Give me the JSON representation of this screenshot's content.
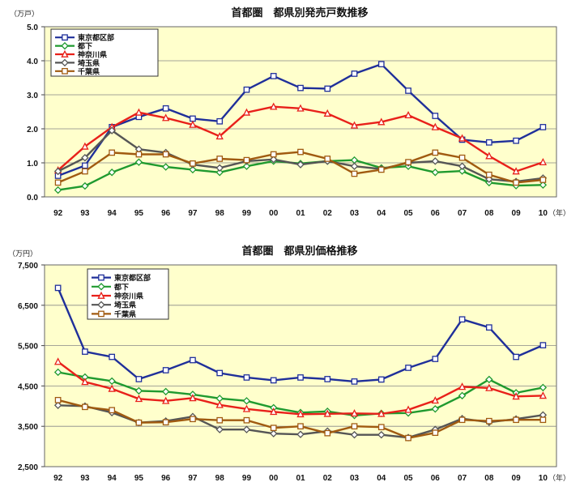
{
  "chart_data": [
    {
      "type": "line",
      "title": "首都圏　都県別発売戸数推移",
      "y_unit": "（万戸）",
      "x_unit": "（年）",
      "categories": [
        "92",
        "93",
        "94",
        "95",
        "96",
        "97",
        "98",
        "99",
        "00",
        "01",
        "02",
        "03",
        "04",
        "05",
        "06",
        "07",
        "08",
        "09",
        "10"
      ],
      "ylim": [
        0,
        5
      ],
      "yticks": [
        "0.0",
        "1.0",
        "2.0",
        "3.0",
        "4.0",
        "5.0"
      ],
      "grid": true,
      "legend_position": "top-left",
      "series": [
        {
          "name": "東京都区部",
          "color": "#1f2f9a",
          "marker": "square",
          "values": [
            0.62,
            0.92,
            2.05,
            2.35,
            2.6,
            2.3,
            2.22,
            3.15,
            3.55,
            3.2,
            3.18,
            3.62,
            3.9,
            3.12,
            2.38,
            1.68,
            1.6,
            1.65,
            2.05
          ]
        },
        {
          "name": "都下",
          "color": "#1f9a2f",
          "marker": "diamond",
          "values": [
            0.2,
            0.32,
            0.72,
            1.02,
            0.88,
            0.8,
            0.72,
            0.9,
            1.05,
            0.98,
            1.05,
            1.08,
            0.85,
            0.9,
            0.72,
            0.76,
            0.42,
            0.33,
            0.35
          ]
        },
        {
          "name": "神奈川県",
          "color": "#e8201a",
          "marker": "triangle",
          "values": [
            0.78,
            1.48,
            2.05,
            2.48,
            2.32,
            2.12,
            1.78,
            2.48,
            2.65,
            2.6,
            2.45,
            2.1,
            2.2,
            2.4,
            2.05,
            1.72,
            1.2,
            0.75,
            1.02
          ]
        },
        {
          "name": "埼玉県",
          "color": "#555555",
          "marker": "diamond",
          "values": [
            0.75,
            1.15,
            1.95,
            1.4,
            1.3,
            0.95,
            0.85,
            1.05,
            1.1,
            0.95,
            1.05,
            0.9,
            0.82,
            1.0,
            1.05,
            0.9,
            0.52,
            0.45,
            0.55
          ]
        },
        {
          "name": "千葉県",
          "color": "#a05a10",
          "marker": "square",
          "values": [
            0.42,
            0.75,
            1.3,
            1.25,
            1.25,
            0.98,
            1.12,
            1.08,
            1.25,
            1.32,
            1.12,
            0.68,
            0.8,
            1.02,
            1.3,
            1.15,
            0.65,
            0.42,
            0.5
          ]
        }
      ]
    },
    {
      "type": "line",
      "title": "首都圏　都県別価格推移",
      "y_unit": "（万円）",
      "x_unit": "（年）",
      "categories": [
        "92",
        "93",
        "94",
        "95",
        "96",
        "97",
        "98",
        "99",
        "00",
        "01",
        "02",
        "03",
        "04",
        "05",
        "06",
        "07",
        "08",
        "09",
        "10"
      ],
      "ylim": [
        2500,
        7500
      ],
      "yticks": [
        "2,500",
        "3,500",
        "4,500",
        "5,500",
        "6,500",
        "7,500"
      ],
      "grid": true,
      "legend_position": "top-left",
      "series": [
        {
          "name": "東京都区部",
          "color": "#1f2f9a",
          "marker": "square",
          "values": [
            6930,
            5350,
            5220,
            4670,
            4890,
            5140,
            4820,
            4710,
            4640,
            4710,
            4670,
            4610,
            4660,
            4950,
            5170,
            6150,
            5950,
            5220,
            5510
          ]
        },
        {
          "name": "都下",
          "color": "#1f9a2f",
          "marker": "diamond",
          "values": [
            4840,
            4720,
            4620,
            4380,
            4360,
            4290,
            4190,
            4130,
            3960,
            3840,
            3870,
            3770,
            3820,
            3830,
            3930,
            4260,
            4660,
            4330,
            4460
          ]
        },
        {
          "name": "神奈川県",
          "color": "#e8201a",
          "marker": "triangle",
          "values": [
            5100,
            4600,
            4430,
            4180,
            4130,
            4200,
            4030,
            3930,
            3860,
            3800,
            3810,
            3820,
            3810,
            3910,
            4140,
            4480,
            4450,
            4240,
            4260
          ]
        },
        {
          "name": "埼玉県",
          "color": "#555555",
          "marker": "diamond",
          "values": [
            4020,
            4000,
            3840,
            3590,
            3630,
            3740,
            3420,
            3420,
            3320,
            3300,
            3380,
            3290,
            3290,
            3220,
            3420,
            3690,
            3600,
            3680,
            3780
          ]
        },
        {
          "name": "千葉県",
          "color": "#a05a10",
          "marker": "square",
          "values": [
            4150,
            3980,
            3900,
            3590,
            3600,
            3680,
            3650,
            3650,
            3460,
            3500,
            3330,
            3500,
            3480,
            3210,
            3340,
            3660,
            3630,
            3660,
            3660
          ]
        }
      ]
    }
  ]
}
